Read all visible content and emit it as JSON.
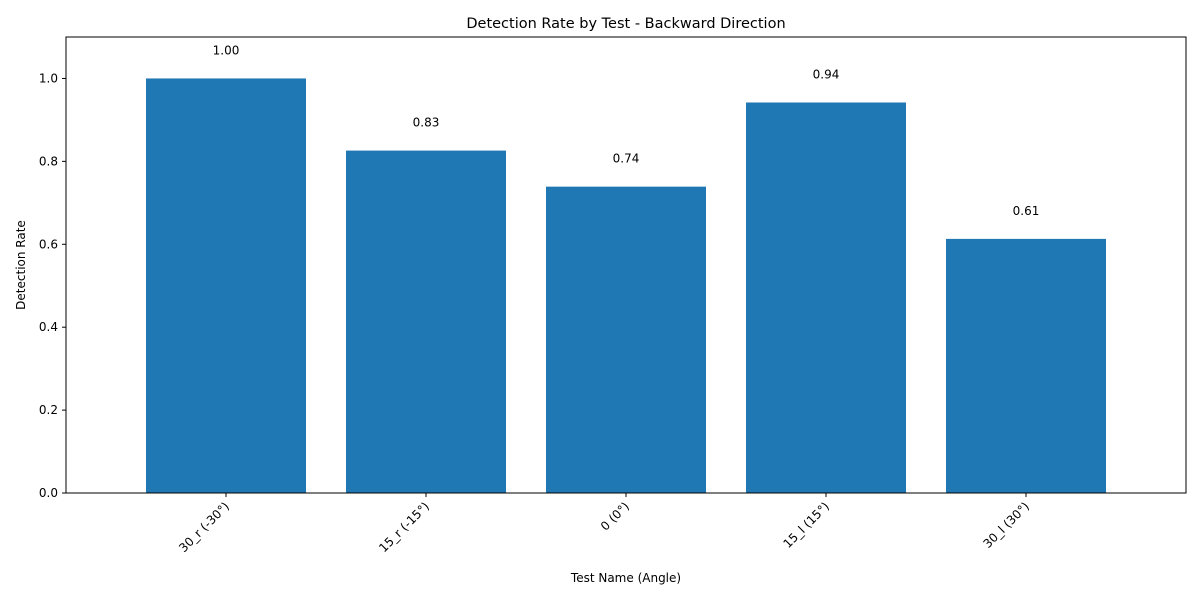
{
  "chart_data": {
    "type": "bar",
    "title": "Detection Rate by Test - Backward Direction",
    "xlabel": "Test Name (Angle)",
    "ylabel": "Detection Rate",
    "categories": [
      "30_r (-30°)",
      "15_r (-15°)",
      "0 (0°)",
      "15_l (15°)",
      "30_l (30°)"
    ],
    "values": [
      1.0,
      0.826,
      0.739,
      0.942,
      0.613
    ],
    "value_labels": [
      "1.00",
      "0.83",
      "0.74",
      "0.94",
      "0.61"
    ],
    "ylim": [
      0,
      1.1
    ],
    "yticks": [
      0.0,
      0.2,
      0.4,
      0.6,
      0.8,
      1.0
    ],
    "ytick_labels": [
      "0.0",
      "0.2",
      "0.4",
      "0.6",
      "0.8",
      "1.0"
    ],
    "bar_color": "#1f77b4",
    "grid": false,
    "legend": "none"
  }
}
